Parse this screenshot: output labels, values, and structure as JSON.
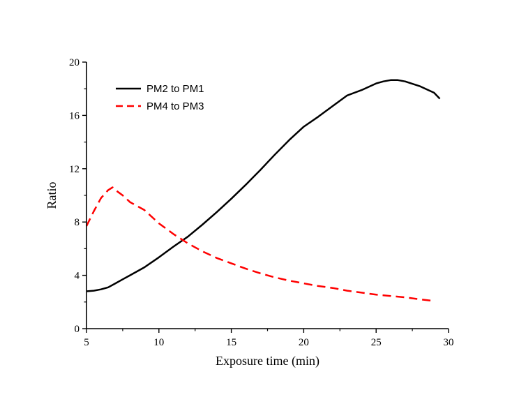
{
  "chart_data": {
    "type": "line",
    "title": "",
    "xlabel": "Exposure time (min)",
    "ylabel": "Ratio",
    "xlim": [
      5,
      30
    ],
    "ylim": [
      0,
      20
    ],
    "xticks": [
      5,
      10,
      15,
      20,
      25,
      30
    ],
    "yticks": [
      0,
      4,
      8,
      12,
      16,
      20
    ],
    "grid": false,
    "legend_position": "top-left",
    "series": [
      {
        "name": "PM2 to PM1",
        "color": "#000000",
        "style": "solid",
        "x": [
          5,
          5.5,
          6,
          6.5,
          7,
          7.5,
          8,
          9,
          10,
          11,
          12,
          13,
          14,
          15,
          16,
          17,
          18,
          19,
          20,
          21,
          22,
          23,
          24,
          25,
          25.5,
          26,
          26.5,
          27,
          28,
          29,
          29.4
        ],
        "y": [
          2.8,
          2.85,
          2.95,
          3.1,
          3.4,
          3.7,
          4.0,
          4.6,
          5.35,
          6.15,
          6.9,
          7.8,
          8.75,
          9.75,
          10.8,
          11.9,
          13.05,
          14.15,
          15.15,
          15.9,
          16.7,
          17.5,
          17.9,
          18.4,
          18.55,
          18.65,
          18.65,
          18.55,
          18.2,
          17.7,
          17.25
        ]
      },
      {
        "name": "PM4 to PM3",
        "color": "#ff0000",
        "style": "dashed",
        "x": [
          5,
          5.5,
          6,
          6.5,
          6.8,
          7,
          7.5,
          8,
          9,
          10,
          11,
          12,
          13,
          14,
          15,
          16,
          17,
          18,
          19,
          20,
          21,
          22,
          23,
          24,
          25,
          26,
          27,
          28,
          28.8
        ],
        "y": [
          7.7,
          8.8,
          9.8,
          10.4,
          10.6,
          10.4,
          10.0,
          9.5,
          8.9,
          7.9,
          7.1,
          6.4,
          5.8,
          5.3,
          4.9,
          4.5,
          4.15,
          3.85,
          3.6,
          3.4,
          3.2,
          3.05,
          2.85,
          2.7,
          2.55,
          2.45,
          2.35,
          2.2,
          2.1
        ]
      }
    ]
  }
}
